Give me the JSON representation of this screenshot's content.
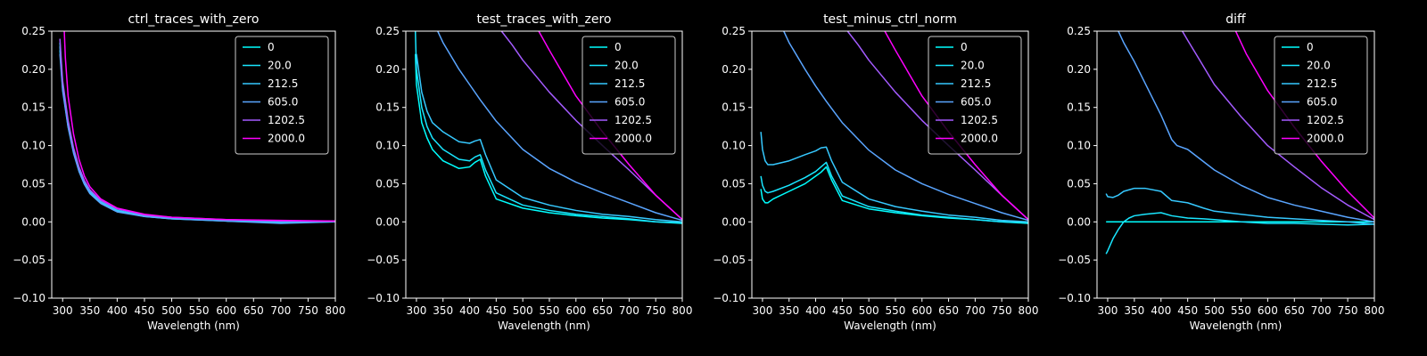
{
  "chart_data": [
    {
      "type": "line",
      "title": "ctrl_traces_with_zero",
      "xlabel": "Wavelength (nm)",
      "xlim": [
        280,
        800
      ],
      "ylim": [
        -0.1,
        0.25
      ],
      "xticks": [
        300,
        350,
        400,
        450,
        500,
        550,
        600,
        650,
        700,
        750,
        800
      ],
      "yticks": [
        -0.1,
        -0.05,
        0.0,
        0.05,
        0.1,
        0.15,
        0.2,
        0.25
      ],
      "legend_position": "top-right",
      "series": [
        {
          "name": "0",
          "color": "#00ffff",
          "x": [
            295,
            300,
            310,
            320,
            330,
            340,
            350,
            370,
            400,
            450,
            500,
            600,
            700,
            800
          ],
          "y": [
            0.235,
            0.18,
            0.13,
            0.095,
            0.07,
            0.052,
            0.04,
            0.026,
            0.015,
            0.008,
            0.005,
            0.002,
            0.0,
            0.0
          ]
        },
        {
          "name": "20.0",
          "color": "#19e6ff",
          "x": [
            295,
            300,
            310,
            320,
            330,
            340,
            350,
            370,
            400,
            450,
            500,
            600,
            700,
            800
          ],
          "y": [
            0.225,
            0.175,
            0.125,
            0.092,
            0.068,
            0.05,
            0.038,
            0.025,
            0.014,
            0.007,
            0.004,
            0.001,
            -0.001,
            0.0
          ]
        },
        {
          "name": "212.5",
          "color": "#36c9ff",
          "x": [
            295,
            300,
            310,
            320,
            330,
            340,
            350,
            370,
            400,
            450,
            500,
            600,
            700,
            800
          ],
          "y": [
            0.23,
            0.178,
            0.128,
            0.094,
            0.069,
            0.051,
            0.04,
            0.026,
            0.015,
            0.008,
            0.005,
            0.002,
            0.0,
            0.001
          ]
        },
        {
          "name": "605.0",
          "color": "#5aa5ff",
          "x": [
            295,
            300,
            310,
            320,
            330,
            340,
            350,
            370,
            400,
            450,
            500,
            600,
            700,
            800
          ],
          "y": [
            0.22,
            0.172,
            0.124,
            0.09,
            0.066,
            0.049,
            0.037,
            0.024,
            0.013,
            0.007,
            0.004,
            0.001,
            -0.002,
            0.0
          ]
        },
        {
          "name": "1202.5",
          "color": "#a45bff",
          "x": [
            295,
            300,
            310,
            320,
            330,
            340,
            350,
            370,
            400,
            450,
            500,
            600,
            700,
            800
          ],
          "y": [
            0.24,
            0.185,
            0.133,
            0.097,
            0.072,
            0.054,
            0.042,
            0.028,
            0.017,
            0.009,
            0.006,
            0.003,
            0.001,
            0.001
          ]
        },
        {
          "name": "2000.0",
          "color": "#ff00ff",
          "x": [
            303,
            305,
            310,
            320,
            330,
            340,
            350,
            370,
            400,
            450,
            500,
            600,
            700,
            800
          ],
          "y": [
            0.25,
            0.215,
            0.165,
            0.115,
            0.082,
            0.06,
            0.046,
            0.03,
            0.018,
            0.01,
            0.006,
            0.003,
            0.002,
            0.001
          ]
        }
      ]
    },
    {
      "type": "line",
      "title": "test_traces_with_zero",
      "xlabel": "Wavelength (nm)",
      "xlim": [
        280,
        800
      ],
      "ylim": [
        -0.1,
        0.25
      ],
      "xticks": [
        300,
        350,
        400,
        450,
        500,
        550,
        600,
        650,
        700,
        750,
        800
      ],
      "yticks": [
        -0.1,
        -0.05,
        0.0,
        0.05,
        0.1,
        0.15,
        0.2,
        0.25
      ],
      "legend_position": "top-right",
      "series": [
        {
          "name": "0",
          "color": "#00ffff",
          "x": [
            298,
            300,
            310,
            320,
            330,
            350,
            380,
            400,
            410,
            420,
            430,
            450,
            500,
            550,
            600,
            650,
            700,
            750,
            800
          ],
          "y": [
            0.22,
            0.18,
            0.13,
            0.11,
            0.095,
            0.08,
            0.07,
            0.072,
            0.078,
            0.082,
            0.06,
            0.03,
            0.018,
            0.012,
            0.008,
            0.005,
            0.003,
            0.0,
            -0.002
          ]
        },
        {
          "name": "20.0",
          "color": "#19e6ff",
          "x": [
            298,
            300,
            310,
            320,
            330,
            350,
            380,
            400,
            410,
            420,
            430,
            450,
            500,
            550,
            600,
            650,
            700,
            750,
            800
          ],
          "y": [
            0.25,
            0.2,
            0.15,
            0.125,
            0.11,
            0.095,
            0.082,
            0.08,
            0.085,
            0.088,
            0.068,
            0.038,
            0.022,
            0.015,
            0.01,
            0.007,
            0.004,
            0.0,
            -0.001
          ]
        },
        {
          "name": "212.5",
          "color": "#36c9ff",
          "x": [
            300,
            310,
            320,
            330,
            350,
            380,
            400,
            410,
            420,
            430,
            450,
            500,
            550,
            600,
            650,
            700,
            750,
            800
          ],
          "y": [
            0.22,
            0.17,
            0.145,
            0.13,
            0.118,
            0.105,
            0.103,
            0.106,
            0.108,
            0.088,
            0.055,
            0.032,
            0.022,
            0.015,
            0.01,
            0.007,
            0.003,
            0.0
          ]
        },
        {
          "name": "605.0",
          "color": "#5aa5ff",
          "x": [
            340,
            350,
            380,
            400,
            420,
            450,
            500,
            550,
            600,
            650,
            700,
            750,
            800
          ],
          "y": [
            0.25,
            0.235,
            0.2,
            0.18,
            0.16,
            0.132,
            0.095,
            0.07,
            0.052,
            0.038,
            0.025,
            0.012,
            0.002
          ]
        },
        {
          "name": "1202.5",
          "color": "#a45bff",
          "x": [
            460,
            480,
            500,
            550,
            600,
            650,
            700,
            750,
            800
          ],
          "y": [
            0.25,
            0.232,
            0.212,
            0.17,
            0.133,
            0.1,
            0.068,
            0.035,
            0.003
          ]
        },
        {
          "name": "2000.0",
          "color": "#ff00ff",
          "x": [
            530,
            550,
            600,
            650,
            700,
            750,
            800
          ],
          "y": [
            0.25,
            0.225,
            0.165,
            0.118,
            0.075,
            0.035,
            0.003
          ]
        }
      ]
    },
    {
      "type": "line",
      "title": "test_minus_ctrl_norm",
      "xlabel": "Wavelength (nm)",
      "xlim": [
        280,
        800
      ],
      "ylim": [
        -0.1,
        0.25
      ],
      "xticks": [
        300,
        350,
        400,
        450,
        500,
        550,
        600,
        650,
        700,
        750,
        800
      ],
      "yticks": [
        -0.1,
        -0.05,
        0.0,
        0.05,
        0.1,
        0.15,
        0.2,
        0.25
      ],
      "legend_position": "top-right",
      "series": [
        {
          "name": "0",
          "color": "#00ffff",
          "x": [
            297,
            300,
            305,
            310,
            320,
            350,
            380,
            400,
            410,
            420,
            430,
            450,
            500,
            550,
            600,
            650,
            700,
            750,
            800
          ],
          "y": [
            0.043,
            0.03,
            0.025,
            0.025,
            0.03,
            0.04,
            0.05,
            0.06,
            0.065,
            0.072,
            0.055,
            0.028,
            0.017,
            0.012,
            0.008,
            0.005,
            0.003,
            0.0,
            -0.002
          ]
        },
        {
          "name": "20.0",
          "color": "#19e6ff",
          "x": [
            297,
            300,
            305,
            310,
            320,
            350,
            380,
            400,
            410,
            420,
            430,
            450,
            500,
            550,
            600,
            650,
            700,
            750,
            800
          ],
          "y": [
            0.06,
            0.048,
            0.04,
            0.038,
            0.04,
            0.048,
            0.058,
            0.066,
            0.072,
            0.078,
            0.06,
            0.034,
            0.02,
            0.014,
            0.009,
            0.006,
            0.003,
            0.0,
            -0.001
          ]
        },
        {
          "name": "212.5",
          "color": "#36c9ff",
          "x": [
            297,
            300,
            305,
            310,
            320,
            350,
            380,
            400,
            410,
            420,
            430,
            450,
            500,
            550,
            600,
            650,
            700,
            750,
            800
          ],
          "y": [
            0.118,
            0.095,
            0.08,
            0.075,
            0.075,
            0.08,
            0.088,
            0.093,
            0.097,
            0.098,
            0.08,
            0.052,
            0.03,
            0.02,
            0.014,
            0.009,
            0.006,
            0.002,
            0.0
          ]
        },
        {
          "name": "605.0",
          "color": "#5aa5ff",
          "x": [
            340,
            350,
            380,
            400,
            420,
            450,
            500,
            550,
            600,
            650,
            700,
            750,
            800
          ],
          "y": [
            0.25,
            0.235,
            0.2,
            0.178,
            0.158,
            0.13,
            0.094,
            0.068,
            0.05,
            0.036,
            0.024,
            0.012,
            0.002
          ]
        },
        {
          "name": "1202.5",
          "color": "#a45bff",
          "x": [
            460,
            480,
            500,
            550,
            600,
            650,
            700,
            750,
            800
          ],
          "y": [
            0.25,
            0.232,
            0.212,
            0.17,
            0.133,
            0.1,
            0.068,
            0.035,
            0.003
          ]
        },
        {
          "name": "2000.0",
          "color": "#ff00ff",
          "x": [
            530,
            550,
            600,
            650,
            700,
            750,
            800
          ],
          "y": [
            0.25,
            0.225,
            0.165,
            0.118,
            0.075,
            0.035,
            0.003
          ]
        }
      ]
    },
    {
      "type": "line",
      "title": "diff",
      "xlabel": "Wavelength (nm)",
      "xlim": [
        280,
        800
      ],
      "ylim": [
        -0.1,
        0.25
      ],
      "xticks": [
        300,
        350,
        400,
        450,
        500,
        550,
        600,
        650,
        700,
        750,
        800
      ],
      "yticks": [
        -0.1,
        -0.05,
        0.0,
        0.05,
        0.1,
        0.15,
        0.2,
        0.25
      ],
      "legend_position": "top-right",
      "series": [
        {
          "name": "0",
          "color": "#00ffff",
          "x": [
            297,
            800
          ],
          "y": [
            0.0,
            0.0
          ]
        },
        {
          "name": "20.0",
          "color": "#19e6ff",
          "x": [
            297,
            300,
            310,
            320,
            330,
            340,
            350,
            370,
            400,
            420,
            450,
            480,
            500,
            550,
            600,
            650,
            700,
            750,
            800
          ],
          "y": [
            -0.042,
            -0.038,
            -0.022,
            -0.01,
            0.0,
            0.005,
            0.008,
            0.01,
            0.012,
            0.008,
            0.005,
            0.004,
            0.003,
            0.0,
            -0.002,
            -0.002,
            -0.003,
            -0.004,
            -0.003
          ]
        },
        {
          "name": "212.5",
          "color": "#36c9ff",
          "x": [
            297,
            300,
            310,
            320,
            330,
            350,
            370,
            400,
            420,
            450,
            480,
            500,
            550,
            600,
            650,
            700,
            750,
            800
          ],
          "y": [
            0.037,
            0.033,
            0.032,
            0.035,
            0.04,
            0.044,
            0.044,
            0.04,
            0.028,
            0.025,
            0.018,
            0.014,
            0.01,
            0.006,
            0.004,
            0.002,
            0.0,
            -0.003
          ]
        },
        {
          "name": "605.0",
          "color": "#5aa5ff",
          "x": [
            320,
            330,
            350,
            380,
            400,
            420,
            430,
            450,
            500,
            550,
            600,
            650,
            700,
            750,
            800
          ],
          "y": [
            0.25,
            0.235,
            0.21,
            0.168,
            0.14,
            0.108,
            0.1,
            0.095,
            0.068,
            0.048,
            0.032,
            0.022,
            0.014,
            0.006,
            0.0
          ]
        },
        {
          "name": "1202.5",
          "color": "#a45bff",
          "x": [
            440,
            450,
            470,
            500,
            550,
            600,
            650,
            700,
            750,
            800
          ],
          "y": [
            0.25,
            0.238,
            0.215,
            0.18,
            0.138,
            0.1,
            0.072,
            0.045,
            0.022,
            0.003
          ]
        },
        {
          "name": "2000.0",
          "color": "#ff00ff",
          "x": [
            540,
            560,
            600,
            650,
            700,
            750,
            800
          ],
          "y": [
            0.25,
            0.22,
            0.172,
            0.124,
            0.08,
            0.04,
            0.005
          ]
        }
      ]
    }
  ]
}
